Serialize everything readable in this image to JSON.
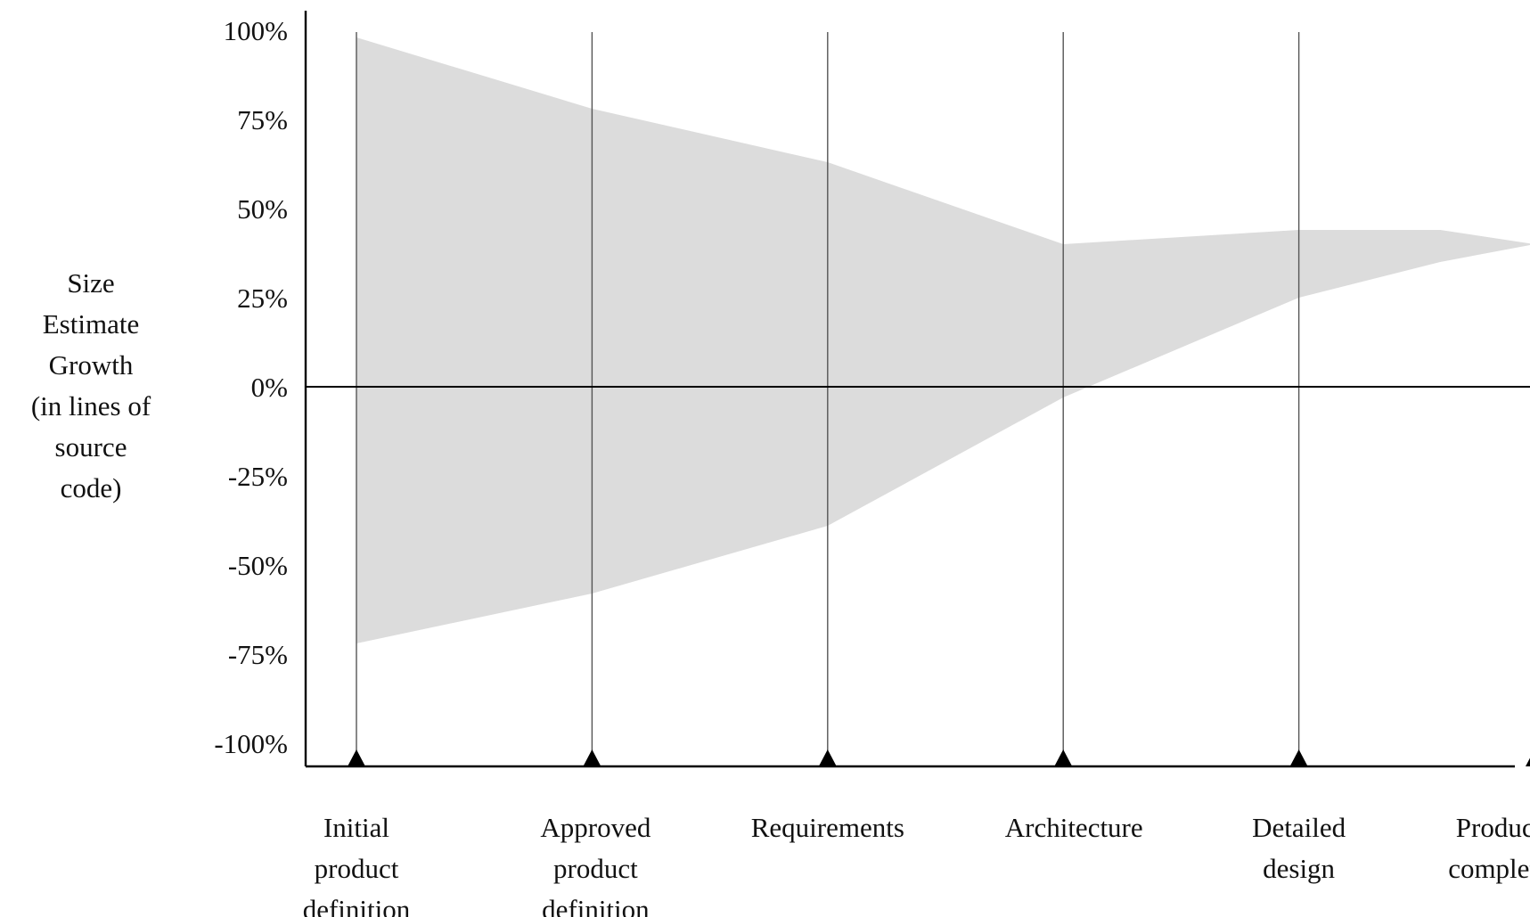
{
  "chart_data": {
    "type": "area",
    "title": "",
    "xlabel": "",
    "ylabel_lines": [
      "Size",
      "Estimate",
      "Growth",
      "(in lines of",
      "source",
      "code)"
    ],
    "categories": [
      [
        "Initial",
        "product",
        "definition"
      ],
      [
        "Approved",
        "product",
        "definition"
      ],
      [
        "Requirements"
      ],
      [
        "Architecture"
      ],
      [
        "Detailed",
        "design"
      ],
      [
        "Product",
        "complete"
      ]
    ],
    "yticks": [
      {
        "value": 100,
        "label": "100%"
      },
      {
        "value": 75,
        "label": "75%"
      },
      {
        "value": 50,
        "label": "50%"
      },
      {
        "value": 25,
        "label": "25%"
      },
      {
        "value": 0,
        "label": "0%"
      },
      {
        "value": -25,
        "label": "-25%"
      },
      {
        "value": -50,
        "label": "-50%"
      },
      {
        "value": -75,
        "label": "-75%"
      },
      {
        "value": -100,
        "label": "-100%"
      }
    ],
    "ylim": [
      -108,
      105
    ],
    "band": {
      "upper": [
        {
          "x": 0,
          "y": 98
        },
        {
          "x": 1,
          "y": 78
        },
        {
          "x": 2,
          "y": 63
        },
        {
          "x": 3,
          "y": 40
        },
        {
          "x": 4,
          "y": 44
        },
        {
          "x": 4.6,
          "y": 44
        },
        {
          "x": 5,
          "y": 40
        }
      ],
      "lower": [
        {
          "x": 0,
          "y": -72
        },
        {
          "x": 1,
          "y": -58
        },
        {
          "x": 2,
          "y": -39
        },
        {
          "x": 3,
          "y": -3
        },
        {
          "x": 4,
          "y": 25
        },
        {
          "x": 4.6,
          "y": 35
        },
        {
          "x": 5,
          "y": 40
        }
      ]
    },
    "grid": false,
    "legend": "none",
    "colors": {
      "band": "#dcdcdc",
      "axis": "#000000",
      "gridline": "#555555"
    }
  }
}
